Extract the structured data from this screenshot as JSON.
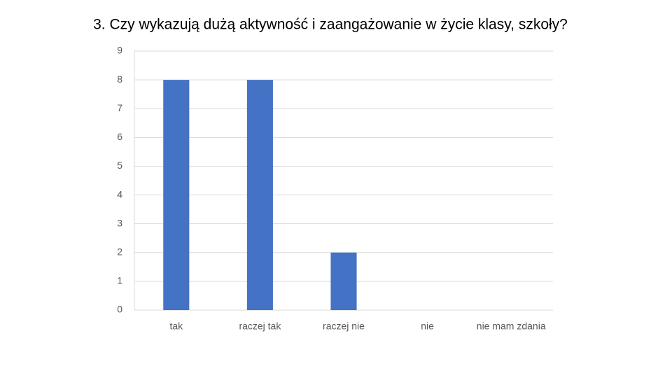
{
  "chart_data": {
    "type": "bar",
    "title": "3. Czy wykazują dużą aktywność i zaangażowanie w życie klasy, szkoły?",
    "categories": [
      "tak",
      "raczej tak",
      "raczej nie",
      "nie",
      "nie mam zdania"
    ],
    "values": [
      8,
      8,
      2,
      0,
      0
    ],
    "color": "#4472c4",
    "ylim": [
      0,
      9
    ],
    "yticks": [
      0,
      1,
      2,
      3,
      4,
      5,
      6,
      7,
      8,
      9
    ],
    "grid": true
  }
}
